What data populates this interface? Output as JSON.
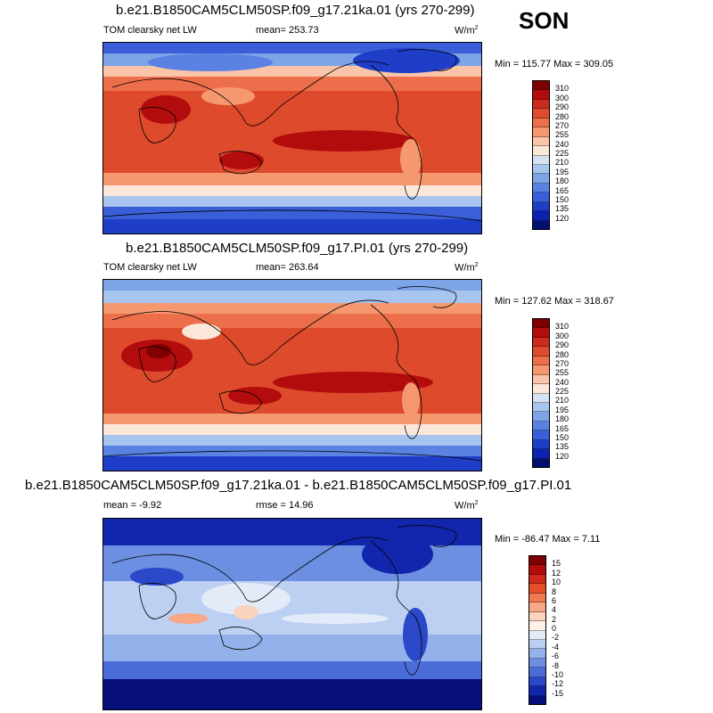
{
  "season": "SON",
  "panels": [
    {
      "title": "b.e21.B1850CAM5CLM50SP.f09_g17.21ka.01 (yrs 270-299)",
      "variable": "TOM clearsky net LW",
      "mean": "mean= 253.73",
      "units": "W/m",
      "units_sup": "2",
      "minmax": "Min = 115.77 Max = 309.05",
      "levels": [
        "310",
        "300",
        "290",
        "280",
        "270",
        "255",
        "240",
        "225",
        "210",
        "195",
        "180",
        "165",
        "150",
        "135",
        "120"
      ],
      "colors": [
        "#7f0000",
        "#b30c0c",
        "#cc2a1c",
        "#de4a2c",
        "#ec6e4a",
        "#f6986f",
        "#fac4a8",
        "#fbe7d9",
        "#d4e2f4",
        "#a7c5ee",
        "#7ea4e8",
        "#5a82e2",
        "#3b5fd8",
        "#1f3ec8",
        "#0b21b0",
        "#04106e"
      ]
    },
    {
      "title": "b.e21.B1850CAM5CLM50SP.f09_g17.PI.01 (yrs 270-299)",
      "variable": "TOM clearsky net LW",
      "mean": "mean= 263.64",
      "units": "W/m",
      "units_sup": "2",
      "minmax": "Min = 127.62 Max = 318.67",
      "levels": [
        "310",
        "300",
        "290",
        "280",
        "270",
        "255",
        "240",
        "225",
        "210",
        "195",
        "180",
        "165",
        "150",
        "135",
        "120"
      ],
      "colors": [
        "#7f0000",
        "#b30c0c",
        "#cc2a1c",
        "#de4a2c",
        "#ec6e4a",
        "#f6986f",
        "#fac4a8",
        "#fbe7d9",
        "#d4e2f4",
        "#a7c5ee",
        "#7ea4e8",
        "#5a82e2",
        "#3b5fd8",
        "#1f3ec8",
        "#0b21b0",
        "#04106e"
      ]
    },
    {
      "title": "b.e21.B1850CAM5CLM50SP.f09_g17.21ka.01 - b.e21.B1850CAM5CLM50SP.f09_g17.PI.01",
      "mean": "mean =  -9.92",
      "rmse": "rmse =  14.96",
      "units": "W/m",
      "units_sup": "2",
      "minmax": "Min = -86.47 Max =   7.11",
      "levels": [
        "15",
        "12",
        "10",
        "8",
        "6",
        "4",
        "2",
        "0",
        "-2",
        "-4",
        "-6",
        "-8",
        "-10",
        "-12",
        "-15"
      ],
      "colors": [
        "#7f0000",
        "#b30c0c",
        "#d22a1a",
        "#e4502c",
        "#f07a52",
        "#f8a884",
        "#fbd3be",
        "#fdf0e6",
        "#e3ebf8",
        "#bcd0f2",
        "#93b1ea",
        "#6c8fe2",
        "#4a6cd8",
        "#2a48c8",
        "#1226ad",
        "#070f78"
      ]
    }
  ]
}
